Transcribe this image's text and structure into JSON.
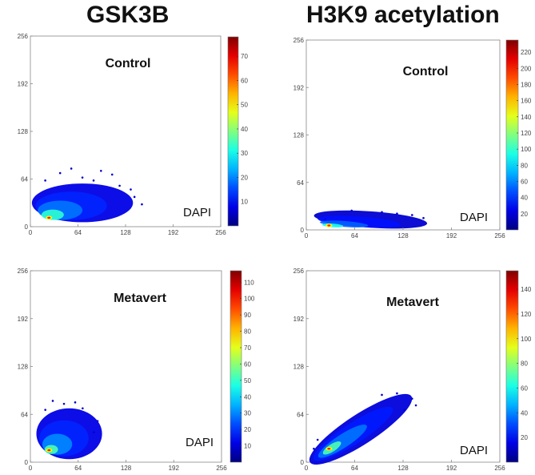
{
  "figure": {
    "columns": [
      {
        "title": "GSK3B"
      },
      {
        "title": "H3K9 acetylation"
      }
    ]
  },
  "chart_data": [
    {
      "type": "heatmap",
      "column": "GSK3B",
      "title": "Control",
      "channel_label": "DAPI",
      "xlim": [
        0,
        256
      ],
      "ylim": [
        0,
        256
      ],
      "x_ticks": [
        0,
        64,
        128,
        192,
        256
      ],
      "y_ticks": [
        0,
        64,
        128,
        192,
        256
      ],
      "colorbar": {
        "min": 0,
        "max": 78,
        "ticks": [
          10,
          20,
          30,
          40,
          50,
          60,
          70
        ]
      },
      "density_peak": {
        "x": 25,
        "y": 12
      },
      "cloud": {
        "x_range": [
          10,
          150
        ],
        "y_range": [
          0,
          75
        ],
        "peak_count": 78
      }
    },
    {
      "type": "heatmap",
      "column": "H3K9 acetylation",
      "title": "Control",
      "channel_label": "DAPI",
      "xlim": [
        0,
        256
      ],
      "ylim": [
        0,
        256
      ],
      "x_ticks": [
        0,
        64,
        128,
        192,
        256
      ],
      "y_ticks": [
        0,
        64,
        128,
        192,
        256
      ],
      "colorbar": {
        "min": 0,
        "max": 235,
        "ticks": [
          20,
          40,
          60,
          80,
          100,
          120,
          140,
          160,
          180,
          200,
          220
        ]
      },
      "density_peak": {
        "x": 30,
        "y": 6
      },
      "cloud": {
        "x_range": [
          10,
          160
        ],
        "y_range": [
          0,
          25
        ],
        "peak_count": 235
      }
    },
    {
      "type": "heatmap",
      "column": "GSK3B",
      "title": "Metavert",
      "channel_label": "DAPI",
      "xlim": [
        0,
        256
      ],
      "ylim": [
        0,
        256
      ],
      "x_ticks": [
        0,
        64,
        128,
        192,
        256
      ],
      "y_ticks": [
        0,
        64,
        128,
        192,
        256
      ],
      "colorbar": {
        "min": 0,
        "max": 117,
        "ticks": [
          10,
          20,
          30,
          40,
          50,
          60,
          70,
          80,
          90,
          100,
          110
        ]
      },
      "density_peak": {
        "x": 25,
        "y": 16
      },
      "cloud": {
        "x_range": [
          10,
          95
        ],
        "y_range": [
          0,
          82
        ],
        "peak_count": 117
      }
    },
    {
      "type": "heatmap",
      "column": "H3K9 acetylation",
      "title": "Metavert",
      "channel_label": "DAPI",
      "xlim": [
        0,
        256
      ],
      "ylim": [
        0,
        256
      ],
      "x_ticks": [
        0,
        64,
        128,
        192,
        256
      ],
      "y_ticks": [
        0,
        64,
        128,
        192,
        256
      ],
      "colorbar": {
        "min": 0,
        "max": 155,
        "ticks": [
          20,
          40,
          60,
          80,
          100,
          120,
          140
        ]
      },
      "density_peak": {
        "x": 30,
        "y": 18
      },
      "cloud": {
        "x_range": [
          5,
          145
        ],
        "y_range": [
          0,
          90
        ],
        "peak_count": 155
      }
    }
  ]
}
